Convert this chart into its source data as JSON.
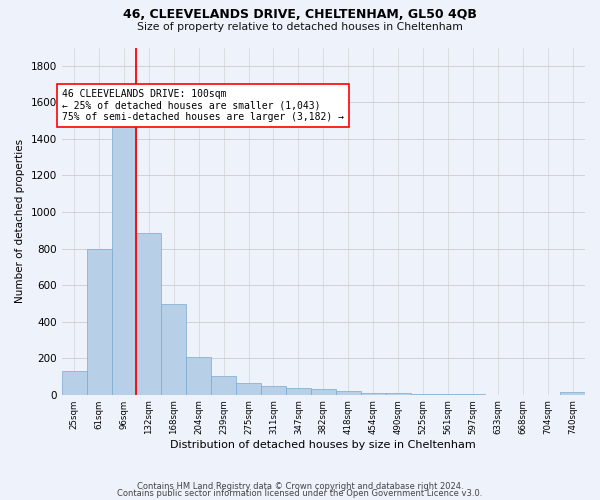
{
  "title": "46, CLEEVELANDS DRIVE, CHELTENHAM, GL50 4QB",
  "subtitle": "Size of property relative to detached houses in Cheltenham",
  "xlabel": "Distribution of detached houses by size in Cheltenham",
  "ylabel": "Number of detached properties",
  "footer1": "Contains HM Land Registry data © Crown copyright and database right 2024.",
  "footer2": "Contains public sector information licensed under the Open Government Licence v3.0.",
  "bar_color": "#b8cfe8",
  "bar_edge_color": "#7aaad0",
  "bg_color": "#eef2fa",
  "categories": [
    "25sqm",
    "61sqm",
    "96sqm",
    "132sqm",
    "168sqm",
    "204sqm",
    "239sqm",
    "275sqm",
    "311sqm",
    "347sqm",
    "382sqm",
    "418sqm",
    "454sqm",
    "490sqm",
    "525sqm",
    "561sqm",
    "597sqm",
    "633sqm",
    "668sqm",
    "704sqm",
    "740sqm"
  ],
  "values": [
    128,
    800,
    1480,
    885,
    495,
    205,
    100,
    65,
    50,
    35,
    30,
    20,
    10,
    8,
    5,
    3,
    2,
    1,
    1,
    1,
    15
  ],
  "ylim": [
    0,
    1900
  ],
  "yticks": [
    0,
    200,
    400,
    600,
    800,
    1000,
    1200,
    1400,
    1600,
    1800
  ],
  "red_line_index": 2,
  "bar_width": 1.0,
  "ann_text_line1": "46 CLEEVELANDS DRIVE: 100sqm",
  "ann_text_line2": "← 25% of detached houses are smaller (1,043)",
  "ann_text_line3": "75% of semi-detached houses are larger (3,182) →"
}
